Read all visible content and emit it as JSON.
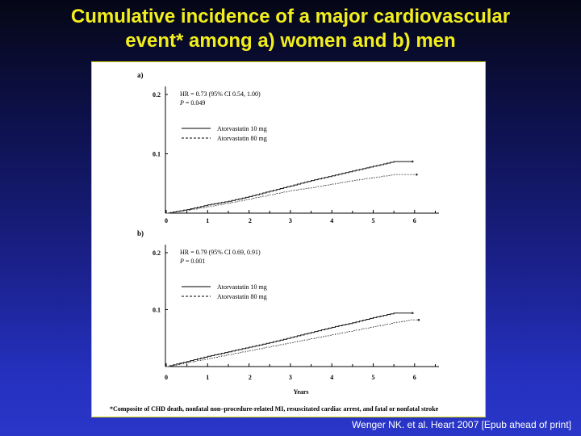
{
  "title": {
    "line1": "Cumulative incidence of a major cardiovascular",
    "line2": "event* among a) women and b) men"
  },
  "citation": "Wenger NK. et al. Heart 2007 [Epub ahead of print]",
  "colors": {
    "title": "#f2ee1e",
    "background_top": "#050716",
    "background_bottom": "#2a36c8",
    "panel_border": "#cfcf00"
  },
  "chart_data": [
    {
      "type": "line",
      "panel_label": "a)",
      "hr_text": "HR = 0.73 (95% CI 0.54, 1.00)",
      "p_label": "P",
      "p_text": " = 0.049",
      "xlabel": "",
      "ylabel": "",
      "xlim": [
        0,
        6.5
      ],
      "ylim": [
        0,
        0.2
      ],
      "x_ticks": [
        "0",
        "1",
        "2",
        "3",
        "4",
        "5",
        "6"
      ],
      "y_ticks": [
        "0.1",
        "0.2"
      ],
      "legend_position": "top-left",
      "series": [
        {
          "name": "Atorvastatin 10 mg",
          "style": "solid",
          "points": [
            [
              0,
              0
            ],
            [
              0.5,
              0.006
            ],
            [
              1,
              0.014
            ],
            [
              1.5,
              0.02
            ],
            [
              2,
              0.028
            ],
            [
              2.5,
              0.037
            ],
            [
              3,
              0.046
            ],
            [
              3.5,
              0.055
            ],
            [
              4,
              0.063
            ],
            [
              4.5,
              0.071
            ],
            [
              5,
              0.079
            ],
            [
              5.5,
              0.087
            ],
            [
              5.95,
              0.087
            ]
          ]
        },
        {
          "name": "Atorvastatin 80 mg",
          "style": "dashed",
          "points": [
            [
              0,
              0
            ],
            [
              0.5,
              0.005
            ],
            [
              1,
              0.011
            ],
            [
              1.5,
              0.017
            ],
            [
              2,
              0.024
            ],
            [
              2.5,
              0.031
            ],
            [
              3,
              0.038
            ],
            [
              3.5,
              0.043
            ],
            [
              4,
              0.049
            ],
            [
              4.5,
              0.055
            ],
            [
              5,
              0.06
            ],
            [
              5.5,
              0.065
            ],
            [
              6.05,
              0.065
            ]
          ]
        }
      ]
    },
    {
      "type": "line",
      "panel_label": "b)",
      "hr_text": "HR = 0.79 (95% CI 0.69, 0.91)",
      "p_label": "P",
      "p_text": " = 0.001",
      "xlabel": "Years",
      "ylabel": "",
      "xlim": [
        0,
        6.5
      ],
      "ylim": [
        0,
        0.2
      ],
      "x_ticks": [
        "0",
        "1",
        "2",
        "3",
        "4",
        "5",
        "6"
      ],
      "y_ticks": [
        "0.1",
        "0.2"
      ],
      "legend_position": "top-left",
      "series": [
        {
          "name": "Atorvastatin 10 mg",
          "style": "solid",
          "points": [
            [
              0,
              0
            ],
            [
              0.5,
              0.009
            ],
            [
              1,
              0.018
            ],
            [
              1.5,
              0.026
            ],
            [
              2,
              0.034
            ],
            [
              2.5,
              0.042
            ],
            [
              3,
              0.051
            ],
            [
              3.5,
              0.06
            ],
            [
              4,
              0.069
            ],
            [
              4.5,
              0.077
            ],
            [
              5,
              0.086
            ],
            [
              5.5,
              0.094
            ],
            [
              5.95,
              0.094
            ]
          ]
        },
        {
          "name": "Atorvastatin 80 mg",
          "style": "dashed",
          "points": [
            [
              0,
              0
            ],
            [
              0.5,
              0.007
            ],
            [
              1,
              0.014
            ],
            [
              1.5,
              0.021
            ],
            [
              2,
              0.028
            ],
            [
              2.5,
              0.035
            ],
            [
              3,
              0.042
            ],
            [
              3.5,
              0.049
            ],
            [
              4,
              0.056
            ],
            [
              4.5,
              0.063
            ],
            [
              5,
              0.07
            ],
            [
              5.5,
              0.077
            ],
            [
              5.9,
              0.082
            ],
            [
              6.1,
              0.082
            ]
          ]
        }
      ]
    }
  ],
  "footnote": "*Composite of CHD death, nonfatal non–procedure-related MI, resuscitated cardiac arrest, and fatal or nonfatal stroke"
}
